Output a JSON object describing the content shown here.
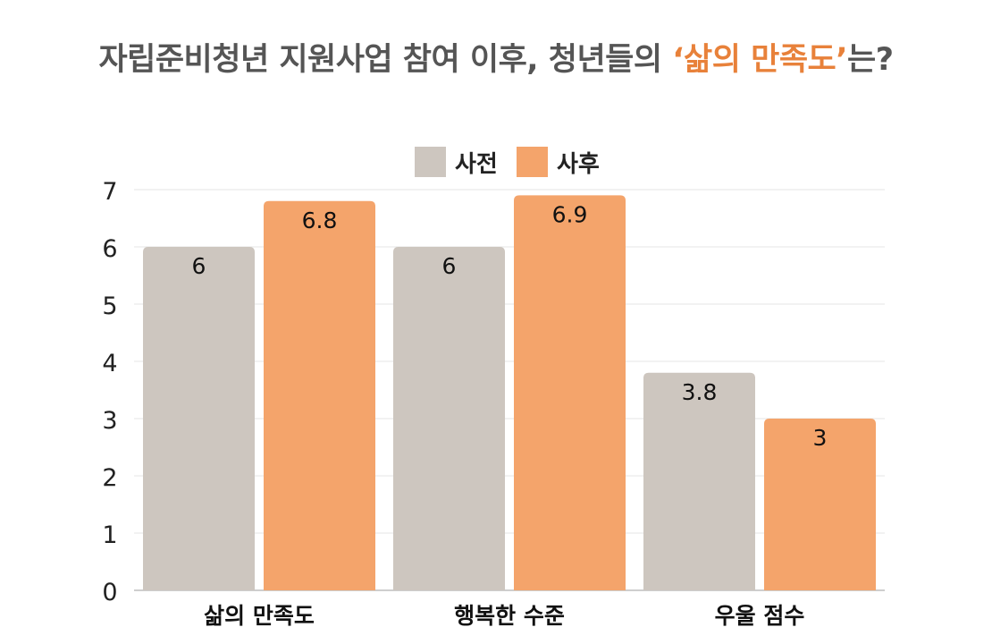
{
  "title": {
    "prefix": "자립준비청년 지원사업 참여 이후, 청년들의 ",
    "highlight": "‘삶의 만족도’",
    "suffix": "는?"
  },
  "chart_data": {
    "type": "bar",
    "categories": [
      "삶의 만족도",
      "행복한 수준",
      "우울 점수"
    ],
    "series": [
      {
        "name": "사전",
        "values": [
          6,
          6,
          3.8
        ],
        "color": "#cdc6bf"
      },
      {
        "name": "사후",
        "values": [
          6.8,
          6.9,
          3
        ],
        "color": "#f4a46b"
      }
    ],
    "value_labels": [
      [
        "6",
        "6",
        "3.8"
      ],
      [
        "6.8",
        "6.9",
        "3"
      ]
    ],
    "y_ticks": [
      "0",
      "1",
      "2",
      "3",
      "4",
      "5",
      "6",
      "7"
    ],
    "ylim": [
      0,
      7
    ],
    "grid": true,
    "legend": "top-center"
  }
}
